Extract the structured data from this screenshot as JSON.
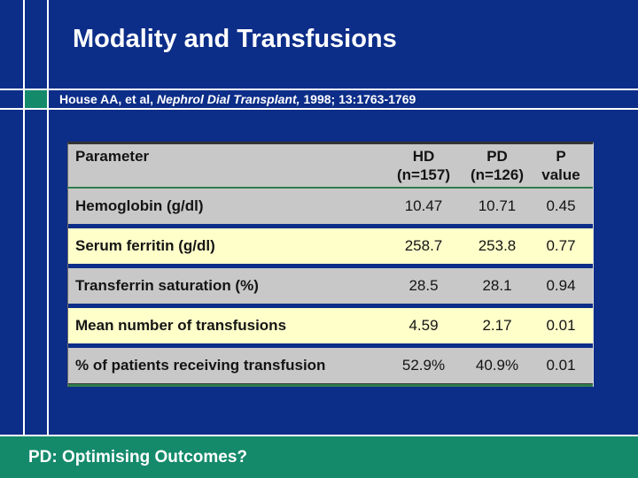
{
  "slide": {
    "title": "Modality and Transfusions",
    "citation": {
      "authors": "House AA, et al, ",
      "journal": "Nephrol Dial Transplant, ",
      "reference": "1998; 13:1763-1769"
    },
    "footer_text": "PD: Optimising Outcomes?"
  },
  "table": {
    "header": {
      "parameter": "Parameter",
      "hd_line1": "HD",
      "hd_line2": "(n=157)",
      "pd_line1": "PD",
      "pd_line2": "(n=126)",
      "p_line1": "P",
      "p_line2": "value"
    },
    "rows": [
      {
        "parameter": "Hemoglobin (g/dl)",
        "hd": "10.47",
        "pd": "10.71",
        "p": "0.45"
      },
      {
        "parameter": "Serum ferritin (g/dl)",
        "hd": "258.7",
        "pd": "253.8",
        "p": "0.77"
      },
      {
        "parameter": "Transferrin saturation (%)",
        "hd": "28.5",
        "pd": "28.1",
        "p": "0.94"
      },
      {
        "parameter": "Mean number of transfusions",
        "hd": "4.59",
        "pd": "2.17",
        "p": "0.01"
      },
      {
        "parameter": "% of patients receiving transfusion",
        "hd": "52.9%",
        "pd": "40.9%",
        "p": "0.01"
      }
    ]
  },
  "colors": {
    "background_navy": "#0c2d88",
    "accent_teal": "#148a6b",
    "row_gray": "#c8c8c8",
    "row_yellow": "#ffffca",
    "divider_green": "#2e7d4f",
    "grid_line_white": "#ffffff",
    "table_text": "#141414",
    "title_text": "#ffffff"
  }
}
